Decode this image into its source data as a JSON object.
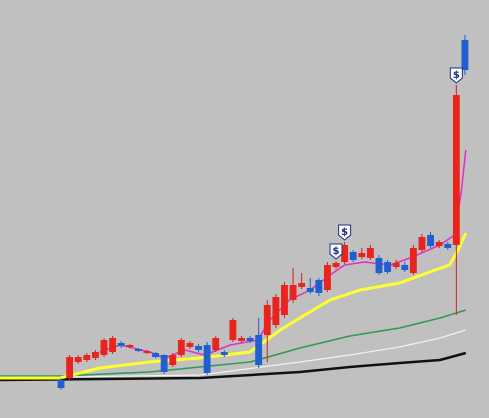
{
  "chart_data": {
    "type": "candlestick",
    "background": "#c0c0c0",
    "up_color": "#e8241c",
    "down_color": "#1f5fd0",
    "wick_color": "#d02020",
    "xlim": [
      -7.1,
      49.8
    ],
    "ylim": [
      0,
      418
    ],
    "candles": {
      "open": [
        38,
        40,
        56,
        58,
        60,
        63,
        66,
        75,
        71,
        69,
        65,
        65,
        63,
        53,
        63,
        71,
        72,
        73,
        68,
        66,
        78,
        77,
        80,
        83,
        83,
        93,
        103,
        118,
        131,
        130,
        138,
        128,
        151,
        156,
        166,
        161,
        160,
        160,
        156,
        151,
        153,
        145,
        168,
        183,
        172,
        174,
        173,
        378
      ],
      "high": [
        40,
        63,
        63,
        65,
        68,
        80,
        82,
        77,
        74,
        70,
        68,
        66,
        64,
        65,
        80,
        77,
        74,
        76,
        82,
        68,
        100,
        82,
        82,
        100,
        118,
        124,
        136,
        150,
        145,
        140,
        140,
        156,
        157,
        176,
        168,
        170,
        173,
        163,
        158,
        158,
        156,
        173,
        184,
        186,
        178,
        176,
        333,
        383
      ],
      "low": [
        28,
        38,
        54,
        56,
        58,
        61,
        64,
        70,
        70,
        66,
        64,
        60,
        44,
        51,
        61,
        69,
        66,
        43,
        66,
        61,
        76,
        75,
        75,
        50,
        56,
        90,
        100,
        115,
        129,
        124,
        122,
        126,
        149,
        154,
        156,
        159,
        158,
        143,
        144,
        149,
        146,
        143,
        166,
        170,
        170,
        168,
        103,
        343
      ],
      "close": [
        30,
        61,
        61,
        63,
        66,
        78,
        80,
        72,
        73,
        67,
        67,
        61,
        46,
        63,
        78,
        75,
        68,
        45,
        80,
        63,
        98,
        80,
        77,
        53,
        113,
        121,
        133,
        133,
        135,
        126,
        125,
        153,
        155,
        173,
        158,
        165,
        170,
        145,
        146,
        155,
        148,
        170,
        181,
        172,
        176,
        170,
        323,
        348
      ]
    },
    "lines": [
      {
        "color": "#111111",
        "width": 2.5,
        "x": [
          -7.1,
          16.2,
          27.8,
          33.6,
          39.4,
          44.1,
          47.1
        ],
        "values": [
          38,
          40,
          46,
          51,
          55,
          58,
          65
        ]
      },
      {
        "color": "#f2f2f2",
        "width": 1.2,
        "x": [
          -7.1,
          16.2,
          27.8,
          33.6,
          39.4,
          44.1,
          47.1
        ],
        "values": [
          40,
          43,
          56,
          63,
          71,
          80,
          88
        ]
      },
      {
        "color": "#2e9a5a",
        "width": 1.6,
        "x": [
          -7.1,
          -0.1,
          10.3,
          22.0,
          27.8,
          33.6,
          39.4,
          44.1,
          47.1
        ],
        "values": [
          42,
          42,
          46,
          56,
          70,
          82,
          90,
          100,
          108
        ]
      },
      {
        "color": "#ffff30",
        "width": 3,
        "x": [
          -7.1,
          -0.1,
          4.5,
          10.3,
          16.2,
          22.0,
          25.5,
          27.8,
          31.3,
          34.8,
          39.4,
          42.9,
          45.2,
          46.2,
          47.1
        ],
        "values": [
          40,
          40,
          50,
          56,
          60,
          66,
          88,
          100,
          118,
          128,
          135,
          146,
          153,
          168,
          185
        ]
      },
      {
        "color": "#e030c0",
        "width": 1.5,
        "x": [
          4.5,
          6.9,
          10.3,
          12.1,
          14.4,
          16.7,
          19.7,
          22.9,
          24.3,
          26.6,
          29.0,
          31.3,
          33.0,
          35.3,
          38.3,
          40.6,
          44.1,
          45.8,
          46.6,
          47.1
        ],
        "values": [
          66,
          73,
          66,
          60,
          68,
          63,
          73,
          78,
          98,
          118,
          128,
          143,
          153,
          156,
          153,
          160,
          173,
          183,
          228,
          268
        ]
      }
    ],
    "signals": [
      {
        "index": 32,
        "label": "$"
      },
      {
        "index": 33,
        "label": "$"
      },
      {
        "index": 46,
        "label": "$"
      }
    ]
  }
}
